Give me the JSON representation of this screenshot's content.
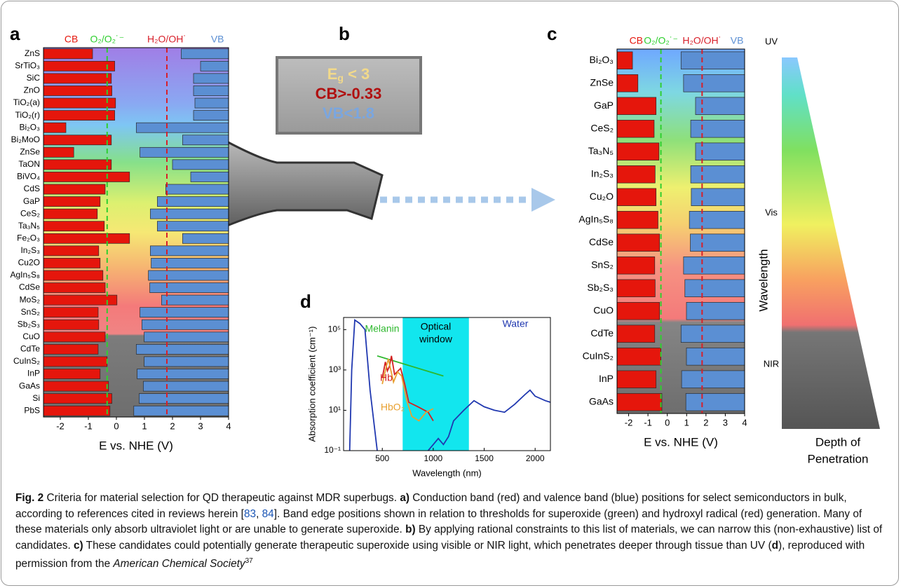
{
  "chart_data": [
    {
      "type": "band",
      "panel": "a",
      "xlabel": "E vs. NHE (V)",
      "categories": [
        "ZnS",
        "SrTiO₃",
        "SiC",
        "ZnO",
        "TiO₂(a)",
        "TiO₂(r)",
        "Bi₂O₃",
        "Bi₂MoO",
        "ZnSe",
        "TaON",
        "BiVO₄",
        "CdS",
        "GaP",
        "CeS₂",
        "Ta₃N₅",
        "Fe₂O₃",
        "In₂S₃",
        "Cu2O",
        "AgIn₅S₈",
        "CdSe",
        "MoS₂",
        "SnS₂",
        "Sb₂S₃",
        "CuO",
        "CdTe",
        "CuInS₂",
        "InP",
        "GaAs",
        "Si",
        "PbS"
      ],
      "series": [
        {
          "name": "CB",
          "color": "#e5160c",
          "values": [
            -0.85,
            -0.06,
            -0.18,
            -0.16,
            -0.03,
            -0.06,
            -1.8,
            -0.18,
            -1.52,
            -0.18,
            0.47,
            -0.4,
            -0.58,
            -0.68,
            -0.43,
            0.47,
            -0.63,
            -0.58,
            -0.48,
            -0.4,
            0.02,
            -0.65,
            -0.63,
            -0.4,
            -0.65,
            -0.33,
            -0.58,
            -0.28,
            -0.16,
            -0.23
          ]
        },
        {
          "name": "VB",
          "color": "#5b8fd3",
          "values": [
            2.31,
            3.0,
            2.75,
            2.75,
            2.8,
            2.75,
            0.71,
            2.36,
            0.84,
            2.0,
            2.65,
            1.76,
            1.46,
            1.21,
            1.46,
            2.36,
            1.21,
            1.24,
            1.14,
            1.19,
            1.61,
            0.84,
            0.91,
            0.99,
            0.71,
            0.99,
            0.74,
            0.96,
            0.81,
            0.62
          ]
        }
      ],
      "reference_lines": [
        {
          "name": "O₂/O₂˙⁻",
          "color": "#2fcf2f",
          "value": -0.33
        },
        {
          "name": "H₂O/OH˙",
          "color": "#d8202a",
          "value": 1.8
        }
      ],
      "xlim": [
        -2.6,
        4
      ],
      "xticks": [
        -2,
        -1,
        0,
        1,
        2,
        3,
        4
      ]
    },
    {
      "type": "band",
      "panel": "c",
      "xlabel": "E vs. NHE (V)",
      "categories": [
        "Bi₂O₃",
        "ZnSe",
        "GaP",
        "CeS₂",
        "Ta₃N₅",
        "In₂S₃",
        "Cu₂O",
        "AgIn₅S₈",
        "CdSe",
        "SnS₂",
        "Sb₂S₃",
        "CuO",
        "CdTe",
        "CuInS₂",
        "InP",
        "GaAs"
      ],
      "series": [
        {
          "name": "CB",
          "color": "#e5160c",
          "values": [
            -1.8,
            -1.52,
            -0.58,
            -0.68,
            -0.43,
            -0.63,
            -0.58,
            -0.48,
            -0.4,
            -0.65,
            -0.63,
            -0.4,
            -0.65,
            -0.33,
            -0.58,
            -0.28
          ]
        },
        {
          "name": "VB",
          "color": "#5b8fd3",
          "values": [
            0.71,
            0.84,
            1.46,
            1.21,
            1.46,
            1.21,
            1.24,
            1.14,
            1.19,
            0.84,
            0.91,
            0.99,
            0.71,
            0.99,
            0.74,
            0.96
          ]
        }
      ],
      "reference_lines": [
        {
          "name": "O₂/O₂˙⁻",
          "color": "#2fcf2f",
          "value": -0.33
        },
        {
          "name": "H₂O/OH˙",
          "color": "#d8202a",
          "value": 1.8
        }
      ],
      "xlim": [
        -2.6,
        4
      ],
      "xticks": [
        -2,
        -1,
        0,
        1,
        2,
        3,
        4
      ]
    },
    {
      "type": "line",
      "panel": "d",
      "xlabel": "Wavelength (nm)",
      "ylabel": "Absorption coefficient (cm⁻¹)",
      "log_y": true,
      "window_label": [
        "Optical",
        "window"
      ],
      "optical_window": [
        700,
        1350
      ],
      "window_color": "#12e6ee",
      "series": [
        {
          "name": "Melanin",
          "color": "#2db82d",
          "x": [
            450,
            1100
          ],
          "values": [
            5000,
            500
          ]
        },
        {
          "name": "Hb",
          "color": "#d42020",
          "x": [
            500,
            530,
            550,
            570,
            590,
            620,
            680,
            720,
            760,
            850,
            950,
            1000
          ],
          "values": [
            400,
            2500,
            900,
            1500,
            5000,
            600,
            1200,
            200,
            25,
            15,
            8,
            3
          ]
        },
        {
          "name": "HbO₂",
          "color": "#e8a030",
          "x": [
            500,
            540,
            560,
            580,
            610,
            650,
            690,
            740,
            790,
            860,
            930,
            1000
          ],
          "values": [
            200,
            1500,
            3500,
            1200,
            250,
            800,
            500,
            30,
            5,
            3,
            8,
            12
          ]
        },
        {
          "name": "Water",
          "color": "#2038b0",
          "x": [
            180,
            200,
            230,
            280,
            330,
            380,
            450,
            700,
            950,
            1000,
            1050,
            1100,
            1150,
            1200,
            1300,
            1400,
            1500,
            1600,
            1700,
            1800,
            1900,
            1950,
            2000,
            2100,
            2150
          ],
          "values": [
            0.1,
            1000,
            300000,
            200000,
            100000,
            100,
            0.1,
            null,
            0.1,
            0.2,
            0.4,
            0.2,
            0.5,
            3,
            10,
            30,
            15,
            10,
            8,
            20,
            60,
            100,
            50,
            30,
            25
          ]
        }
      ],
      "xlim": [
        120,
        2150
      ],
      "xticks": [
        500,
        1000,
        1500,
        2000
      ],
      "ylim": [
        0.1,
        400000
      ],
      "yticks": [
        {
          "value": 0.1,
          "label": "10⁻¹"
        },
        {
          "value": 10,
          "label": "10¹"
        },
        {
          "value": 1000,
          "label": "10³"
        },
        {
          "value": 100000,
          "label": "10⁵"
        }
      ]
    }
  ],
  "panel_b": {
    "panel": "b",
    "energy_gap": {
      "symbol": "E",
      "subscript": "g",
      "condition": " < 3"
    },
    "cb_condition": "CB>-0.33",
    "vb_condition": "VB<1.8"
  },
  "wavelength_scale": {
    "labels": [
      "UV",
      "Vis",
      "NIR"
    ],
    "axis_label": "Wavelength",
    "depth_label": [
      "Depth of",
      "Penetration"
    ]
  },
  "caption": [
    "Fig. 2",
    " Criteria for material selection for QD therapeutic against MDR superbugs. ",
    "a)",
    " Conduction band (red) and valence band (blue) positions for select semiconductors in bulk, according to references cited in reviews herein [",
    "83",
    ", ",
    "84",
    "]. Band edge positions shown in relation to thresholds for superoxide (green) and hydroxyl radical (red) generation. Many of these materials only absorb ultraviolet light or are unable to generate superoxide. ",
    "b)",
    " By applying rational constraints to this list of materials, we can narrow this (non-exhaustive) list of candidates. ",
    "c)",
    " These candidates could potentially generate therapeutic superoxide using visible or NIR light, which penetrates deeper through tissue than UV (",
    "d",
    "), reproduced with permission from the ",
    "American Chemical Society",
    "37"
  ]
}
